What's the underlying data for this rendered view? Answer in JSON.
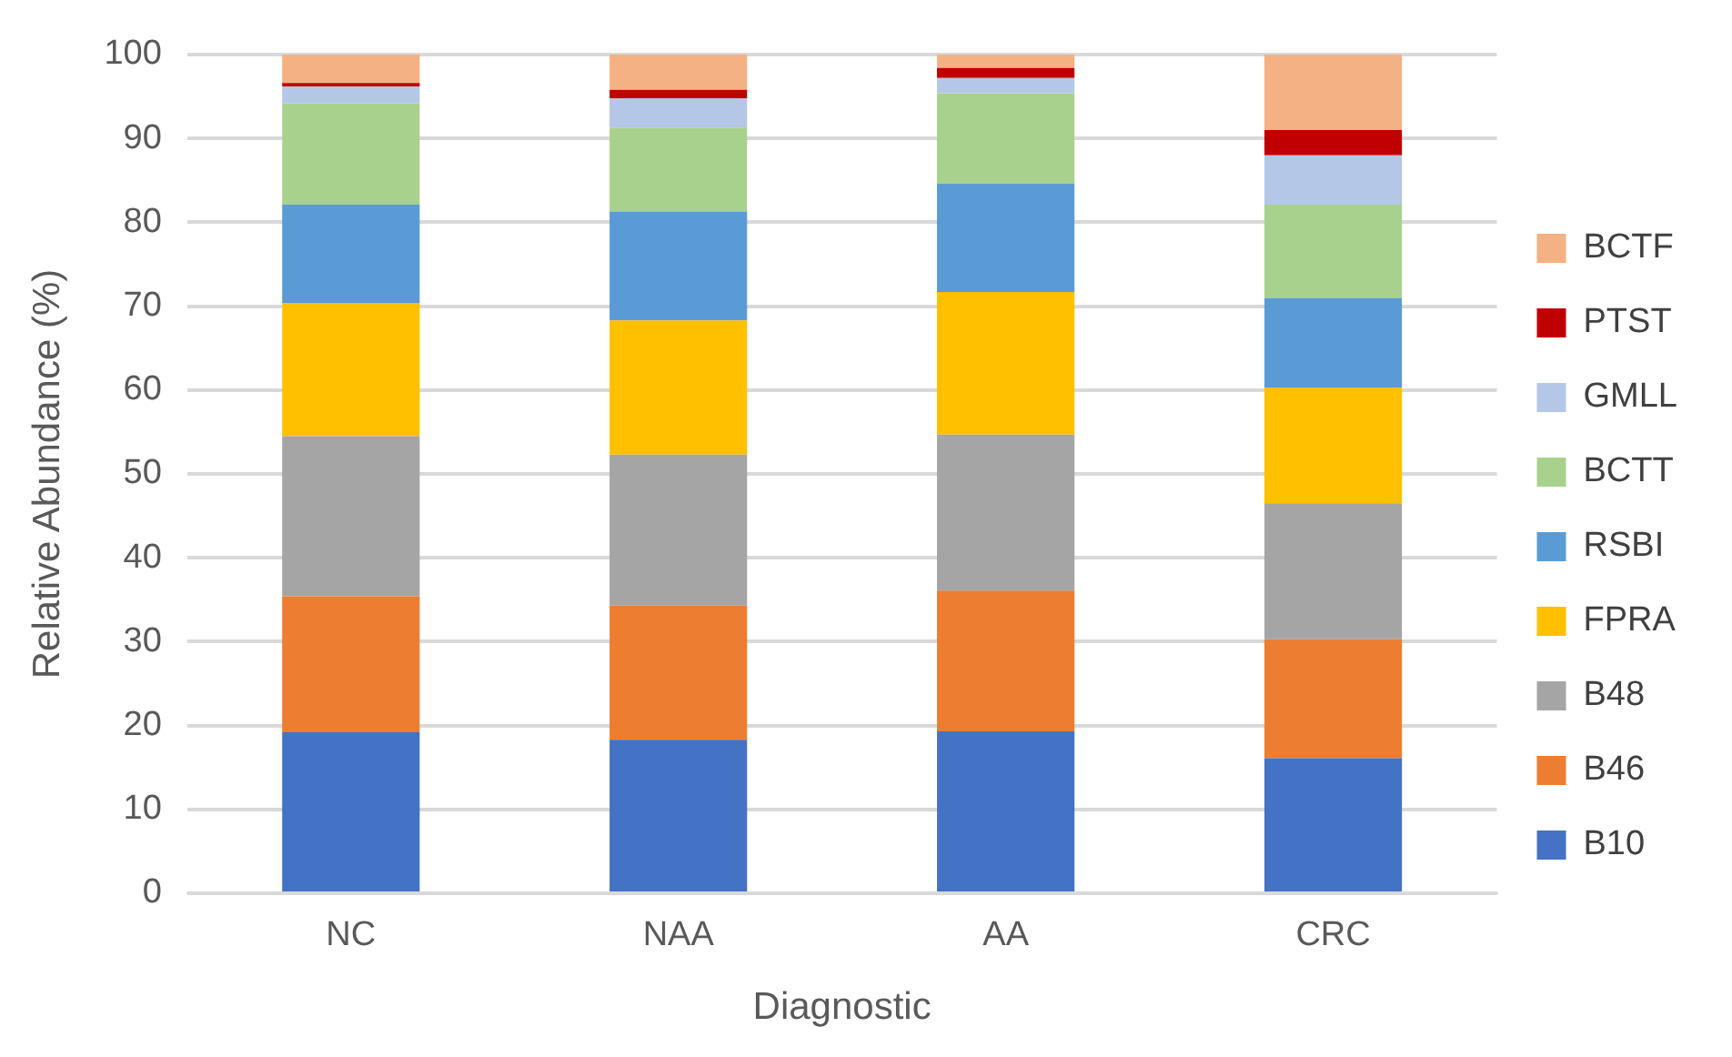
{
  "chart_data": {
    "type": "bar",
    "stacked": true,
    "xlabel": "Diagnostic",
    "ylabel": "Relative Abundance (%)",
    "categories": [
      "NC",
      "NAA",
      "AA",
      "CRC"
    ],
    "ylim": [
      0,
      100
    ],
    "yticks": [
      0,
      10,
      20,
      30,
      40,
      50,
      60,
      70,
      80,
      90,
      100
    ],
    "grid": "y",
    "legend": "right",
    "series": [
      {
        "name": "B10",
        "color": "#4472c4",
        "values": [
          19.2,
          18.3,
          19.3,
          16.1
        ]
      },
      {
        "name": "B46",
        "color": "#ed7d31",
        "values": [
          16.2,
          16.0,
          16.8,
          14.2
        ]
      },
      {
        "name": "B48",
        "color": "#a5a5a5",
        "values": [
          19.1,
          18.0,
          18.6,
          16.2
        ]
      },
      {
        "name": "FPRA",
        "color": "#ffc000",
        "values": [
          15.9,
          16.0,
          17.0,
          13.8
        ]
      },
      {
        "name": "RSBI",
        "color": "#5b9bd5",
        "values": [
          11.7,
          13.0,
          12.9,
          10.7
        ]
      },
      {
        "name": "BCTT",
        "color": "#a9d18e",
        "values": [
          12.1,
          10.0,
          10.8,
          11.1
        ]
      },
      {
        "name": "GMLL",
        "color": "#b4c7e7",
        "values": [
          2.0,
          3.5,
          1.8,
          5.9
        ]
      },
      {
        "name": "PTST",
        "color": "#c00000",
        "values": [
          0.4,
          1.0,
          1.2,
          3.0
        ]
      },
      {
        "name": "BCTF",
        "color": "#f4b183",
        "values": [
          3.4,
          4.2,
          1.6,
          9.0
        ]
      }
    ]
  }
}
